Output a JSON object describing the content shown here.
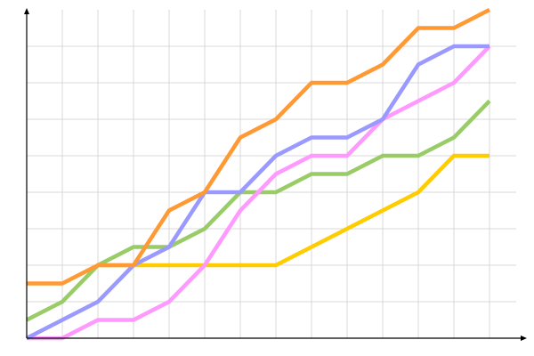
{
  "chart_data": {
    "type": "line",
    "title": "",
    "xlabel": "",
    "ylabel": "",
    "x": [
      0,
      1,
      2,
      3,
      4,
      5,
      6,
      7,
      8,
      9,
      10,
      11,
      12,
      13
    ],
    "xlim": [
      0,
      14
    ],
    "ylim": [
      0,
      9
    ],
    "grid": true,
    "legend": "none",
    "series": [
      {
        "color": "#ffcc00",
        "values": [
          null,
          null,
          2,
          2,
          2,
          2,
          2,
          2,
          2.5,
          3,
          3.5,
          4,
          5,
          5
        ]
      },
      {
        "color": "#99cc66",
        "values": [
          0.5,
          1,
          2,
          2.5,
          2.5,
          3,
          4,
          4,
          4.5,
          4.5,
          5,
          5,
          5.5,
          6.5
        ]
      },
      {
        "color": "#ff99ff",
        "values": [
          0,
          0,
          0.5,
          0.5,
          1,
          2,
          3.5,
          4.5,
          5,
          5,
          6,
          6.5,
          7,
          8
        ]
      },
      {
        "color": "#9999ff",
        "values": [
          0,
          0.5,
          1,
          2,
          2.5,
          4,
          4,
          5,
          5.5,
          5.5,
          6,
          7.5,
          8,
          8
        ]
      },
      {
        "color": "#ff9933",
        "values": [
          1.5,
          1.5,
          2,
          2,
          3.5,
          4,
          5.5,
          6,
          7,
          7,
          7.5,
          8.5,
          8.5,
          9
        ]
      }
    ]
  }
}
